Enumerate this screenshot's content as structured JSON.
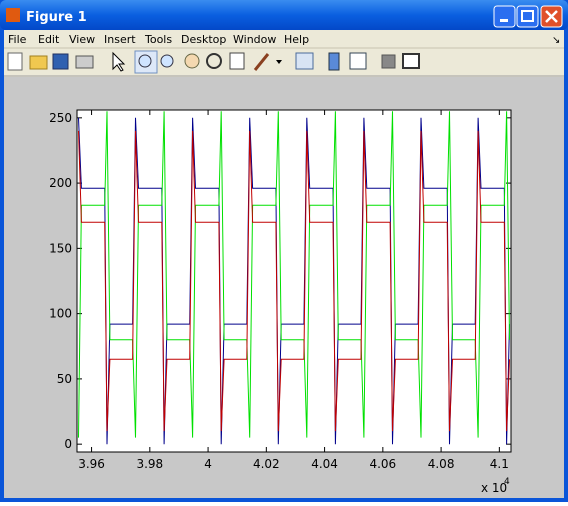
{
  "window": {
    "title": "Figure 1",
    "menu": [
      "File",
      "Edit",
      "View",
      "Insert",
      "Tools",
      "Desktop",
      "Window",
      "Help"
    ]
  },
  "chart_data": {
    "type": "line",
    "x": [
      3.9555,
      3.9565,
      3.9645,
      3.9653,
      3.9663,
      3.9741,
      3.9751,
      3.9761,
      3.9841,
      3.9849,
      3.9859,
      3.9937,
      3.9947,
      3.9957,
      4.0037,
      4.0045,
      4.0055,
      4.0133,
      4.0143,
      4.0153,
      4.0233,
      4.0241,
      4.0251,
      4.0329,
      4.0339,
      4.0349,
      4.0429,
      4.0437,
      4.0447,
      4.0525,
      4.0535,
      4.0545,
      4.0625,
      4.0633,
      4.0643,
      4.0721,
      4.0731,
      4.0741,
      4.0821,
      4.0829,
      4.0839,
      4.0917,
      4.0927,
      4.0937,
      4.1017,
      4.1025,
      4.1035
    ],
    "series": [
      {
        "color": "#00008b",
        "values": [
          250,
          196,
          196,
          0,
          92,
          92,
          250,
          196,
          196,
          0,
          92,
          92,
          250,
          196,
          196,
          0,
          92,
          92,
          250,
          196,
          196,
          0,
          92,
          92,
          250,
          196,
          196,
          0,
          92,
          92,
          250,
          196,
          196,
          0,
          92,
          92,
          250,
          196,
          196,
          0,
          92,
          92,
          250,
          196,
          196,
          0,
          92
        ]
      },
      {
        "color": "#00e000",
        "values": [
          5,
          183,
          183,
          255,
          80,
          80,
          5,
          183,
          183,
          255,
          80,
          80,
          5,
          183,
          183,
          255,
          80,
          80,
          5,
          183,
          183,
          255,
          80,
          80,
          5,
          183,
          183,
          255,
          80,
          80,
          5,
          183,
          183,
          255,
          80,
          80,
          5,
          183,
          183,
          255,
          80,
          80,
          5,
          183,
          183,
          255,
          80
        ]
      },
      {
        "color": "#c00000",
        "values": [
          240,
          170,
          170,
          10,
          65,
          65,
          240,
          170,
          170,
          10,
          65,
          65,
          240,
          170,
          170,
          10,
          65,
          65,
          240,
          170,
          170,
          10,
          65,
          65,
          240,
          170,
          170,
          10,
          65,
          65,
          240,
          170,
          170,
          10,
          65,
          65,
          240,
          170,
          170,
          10,
          65,
          65,
          240,
          170,
          170,
          10,
          65
        ]
      }
    ],
    "xlim": [
      3.955,
      4.104
    ],
    "xticks": [
      3.96,
      3.98,
      4,
      4.02,
      4.04,
      4.06,
      4.08,
      4.1
    ],
    "ylim": [
      -6,
      256
    ],
    "yticks": [
      0,
      50,
      100,
      150,
      200,
      250
    ],
    "x_multiplier": "x 10",
    "x_exponent": "4"
  }
}
